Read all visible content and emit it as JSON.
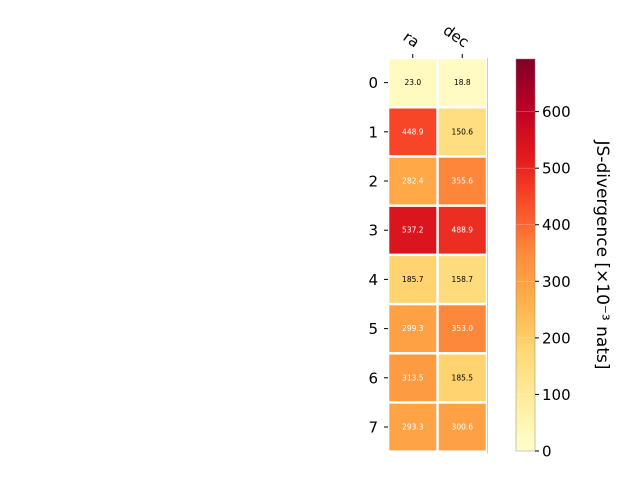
{
  "chart_data": {
    "type": "heatmap",
    "columns": [
      "ra",
      "dec"
    ],
    "rows": [
      "0",
      "1",
      "2",
      "3",
      "4",
      "5",
      "6",
      "7"
    ],
    "values": [
      [
        23.0,
        18.8
      ],
      [
        448.9,
        150.6
      ],
      [
        282.4,
        355.6
      ],
      [
        537.2,
        488.9
      ],
      [
        185.7,
        158.7
      ],
      [
        299.3,
        353.0
      ],
      [
        313.5,
        185.5
      ],
      [
        293.3,
        300.6
      ]
    ],
    "colorbar": {
      "label": "JS-divergence [×10⁻³ nats]",
      "range": [
        0,
        693
      ],
      "ticks": [
        0,
        100,
        200,
        300,
        400,
        500,
        600
      ],
      "colormap": "YlOrRd"
    }
  }
}
